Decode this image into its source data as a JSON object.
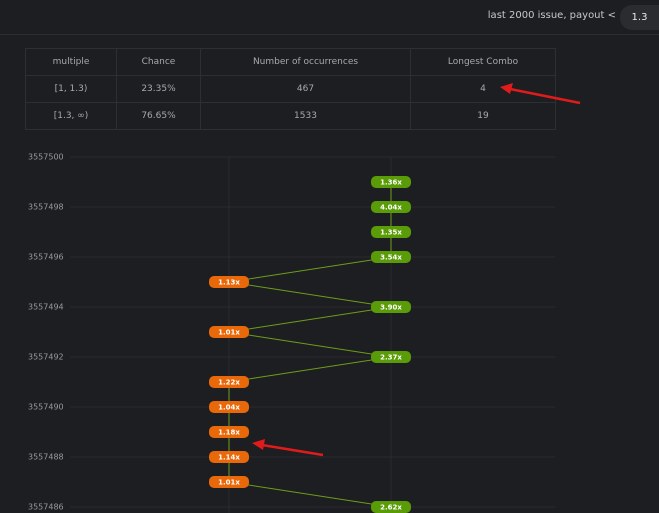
{
  "header": {
    "text": "last 2000 issue, payout <",
    "payout": 1.3
  },
  "table": {
    "columns": [
      "multiple",
      "Chance",
      "Number of occurrences",
      "Longest Combo"
    ],
    "rows": [
      [
        "[1, 1.3)",
        "23.35%",
        467,
        4
      ],
      [
        "[1.3, ∞)",
        "76.65%",
        1533,
        19
      ]
    ]
  },
  "chart_data": {
    "type": "line",
    "ylim": [
      3557486,
      3557500
    ],
    "yticks": [
      3557500,
      3557498,
      3557496,
      3557494,
      3557492,
      3557490,
      3557488,
      3557486
    ],
    "issues": [
      3557499,
      3557498,
      3557497,
      3557496,
      3557495,
      3557494,
      3557493,
      3557492,
      3557491,
      3557490,
      3557489,
      3557488,
      3557487,
      3557486
    ],
    "values": [
      1.36,
      4.04,
      1.35,
      3.54,
      1.13,
      3.9,
      1.01,
      2.37,
      1.22,
      1.04,
      1.18,
      1.14,
      1.01,
      2.62
    ],
    "value_labels": [
      "1.36x",
      "4.04x",
      "1.35x",
      "3.54x",
      "1.13x",
      "3.90x",
      "1.01x",
      "2.37x",
      "1.22x",
      "1.04x",
      "1.18x",
      "1.14x",
      "1.01x",
      "2.62x"
    ],
    "colors": [
      "#e8680a",
      "#5a9c08"
    ],
    "line_color": "#6f9e1a",
    "grid": true
  }
}
